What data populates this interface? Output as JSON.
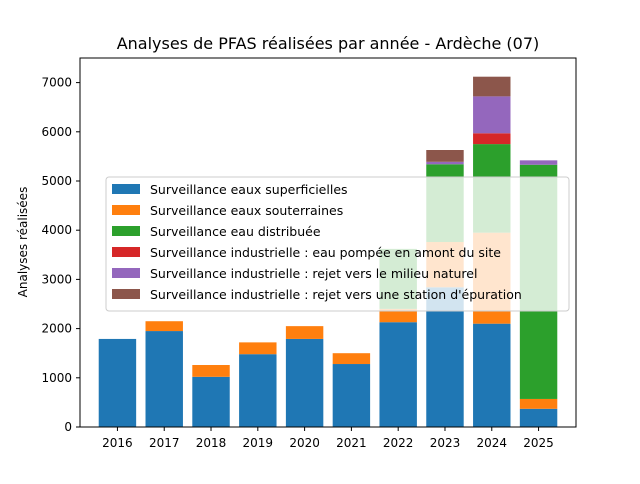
{
  "chart_data": {
    "type": "bar",
    "stacked": true,
    "title": "Analyses de PFAS réalisées par année - Ardèche (07)",
    "xlabel": "",
    "ylabel": "Analyses réalisées",
    "categories": [
      "2016",
      "2017",
      "2018",
      "2019",
      "2020",
      "2021",
      "2022",
      "2023",
      "2024",
      "2025"
    ],
    "ylim": [
      0,
      7500
    ],
    "yticks": [
      0,
      1000,
      2000,
      3000,
      4000,
      5000,
      6000,
      7000
    ],
    "grid": false,
    "legend_position": "center-left",
    "series": [
      {
        "name": "Surveillance eaux superficielles",
        "color": "#1f77b4",
        "values": [
          1790,
          1950,
          1020,
          1480,
          1790,
          1280,
          2130,
          2840,
          2100,
          370
        ]
      },
      {
        "name": "Surveillance eaux souterraines",
        "color": "#ff7f0e",
        "values": [
          0,
          200,
          240,
          240,
          260,
          220,
          270,
          920,
          1850,
          200
        ]
      },
      {
        "name": "Surveillance eau distribuée",
        "color": "#2ca02c",
        "values": [
          0,
          0,
          0,
          0,
          0,
          0,
          1220,
          1580,
          1800,
          4760
        ]
      },
      {
        "name": "Surveillance industrielle : eau pompée en amont du site",
        "color": "#d62728",
        "values": [
          0,
          0,
          0,
          0,
          0,
          0,
          0,
          0,
          220,
          0
        ]
      },
      {
        "name": "Surveillance industrielle : rejet vers le milieu naturel",
        "color": "#9467bd",
        "values": [
          0,
          0,
          0,
          0,
          0,
          0,
          0,
          50,
          750,
          90
        ]
      },
      {
        "name": "Surveillance industrielle : rejet vers une station d'épuration",
        "color": "#8c564b",
        "values": [
          0,
          0,
          0,
          0,
          0,
          0,
          0,
          240,
          400,
          0
        ]
      }
    ]
  }
}
